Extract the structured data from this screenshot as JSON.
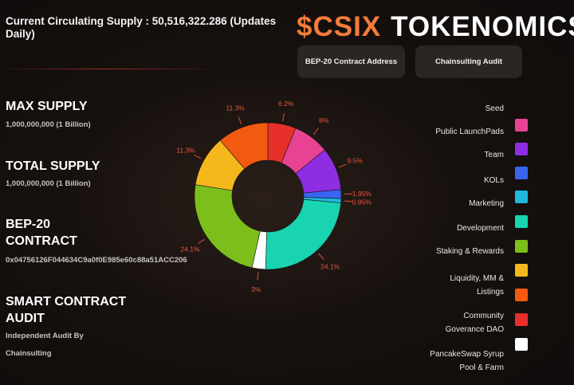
{
  "header": {
    "supply_text": "Current Circulating Supply : 50,516,322.286 (Updates Daily)",
    "brand_ticker": "$CSIX",
    "brand_word": "TOKENOMICS"
  },
  "buttons": {
    "contract": "BEP-20 Contract Address",
    "audit": "Chainsulting Audit"
  },
  "stats": {
    "max_supply_title": "MAX SUPPLY",
    "max_supply_value": "1,000,000,000 (1 Billion)",
    "total_supply_title": "TOTAL SUPPLY",
    "total_supply_value": "1,000,000,000 (1 Billion)",
    "contract_title_1": "BEP-20",
    "contract_title_2": "CONTRACT",
    "contract_value": "0x04756126F044634C9a0f0E985e60c88a51ACC206",
    "audit_title_1": "SMART CONTRACT",
    "audit_title_2": "AUDIT",
    "audit_line_1": "Independent Audit By",
    "audit_line_2": "Chainsulting"
  },
  "legend": [
    {
      "label": "Seed",
      "color": ""
    },
    {
      "label": "Public LaunchPads",
      "color": "#e84393"
    },
    {
      "label": "Team",
      "color": "#8e2de2"
    },
    {
      "label": "KOLs",
      "color": "#3a64f0"
    },
    {
      "label": "Marketing",
      "color": "#1eb8e0"
    },
    {
      "label": "Development",
      "color": "#18d4b0"
    },
    {
      "label": "Staking & Rewards",
      "color": "#7cbf1c"
    },
    {
      "label": "Liquidity, MM & Listings",
      "color": "#f5b81c"
    },
    {
      "label": "Community Goverance DAO",
      "color": "#f25a11"
    },
    {
      "label": "PancakeSwap Syrup Pool & Farm",
      "color": "#e8302b"
    },
    {
      "label": "",
      "color": "#ffffff"
    }
  ],
  "chart_data": {
    "type": "pie",
    "subtype": "donut",
    "slices": [
      {
        "label": "6.2%",
        "value": 6.2,
        "color": "#e8302b"
      },
      {
        "label": "8%",
        "value": 8,
        "color": "#e84393"
      },
      {
        "label": "9.5%",
        "value": 9.5,
        "color": "#8e2de2"
      },
      {
        "label": "1.95%",
        "value": 1.95,
        "color": "#3a64f0"
      },
      {
        "label": "0.95%",
        "value": 0.95,
        "color": "#1eb8e0"
      },
      {
        "label": "24.1%",
        "value": 24.1,
        "color": "#18d4b0"
      },
      {
        "label": "3%",
        "value": 3,
        "color": "#ffffff"
      },
      {
        "label": "24.1%",
        "value": 24.1,
        "color": "#7cbf1c"
      },
      {
        "label": "11.3%",
        "value": 11.3,
        "color": "#f5b81c"
      },
      {
        "label": "11.3%",
        "value": 11.3,
        "color": "#f25a11"
      }
    ]
  }
}
